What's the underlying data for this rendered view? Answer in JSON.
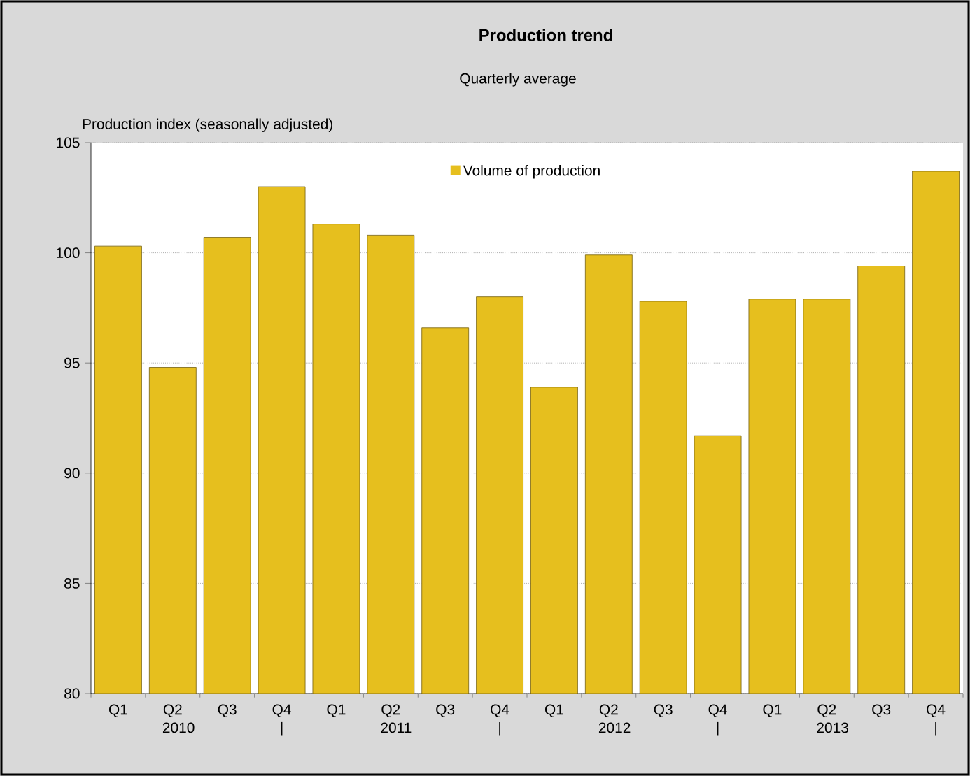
{
  "chart_data": {
    "type": "bar",
    "title": "Production trend",
    "subtitle": "Quarterly average",
    "ylabel": "Production index (seasonally adjusted)",
    "categories": [
      "Q1",
      "Q2 2010",
      "Q3",
      "Q4 |",
      "Q1",
      "Q2 2011",
      "Q3",
      "Q4 |",
      "Q1",
      "Q2 2012",
      "Q3",
      "Q4 |",
      "Q1",
      "Q2 2013",
      "Q3",
      "Q4 |"
    ],
    "series": [
      {
        "name": "Volume of production",
        "color": "#e6bf1e",
        "values": [
          100.3,
          94.8,
          100.7,
          103.0,
          101.3,
          100.8,
          96.6,
          98.0,
          93.9,
          99.9,
          97.8,
          91.7,
          97.9,
          97.9,
          99.4,
          103.7
        ]
      }
    ],
    "ylim": [
      80,
      105
    ],
    "yticks": [
      80,
      85,
      90,
      95,
      100,
      105
    ],
    "grid": "y",
    "legend": "top"
  }
}
